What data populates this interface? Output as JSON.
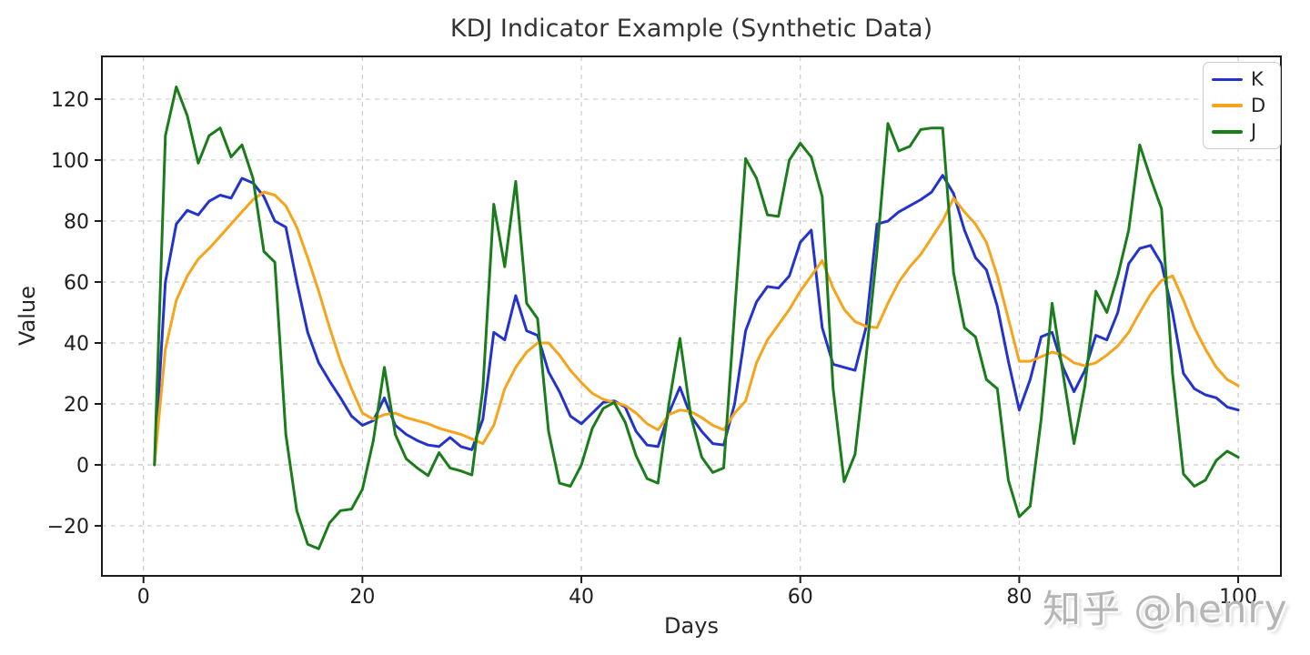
{
  "watermark": {
    "text": "知乎 @henry"
  },
  "chart_data": {
    "type": "line",
    "title": "KDJ Indicator Example (Synthetic Data)",
    "xlabel": "Days",
    "ylabel": "Value",
    "x": {
      "first_day": 1,
      "last_day": 100,
      "step": 1
    },
    "xlim": [
      -3.8,
      103.9
    ],
    "ylim": [
      -36.4,
      134.0
    ],
    "x_ticks": [
      0,
      20,
      40,
      60,
      80,
      100
    ],
    "y_ticks": [
      -20,
      0,
      20,
      40,
      60,
      80,
      100,
      120
    ],
    "grid": true,
    "grid_style": "dashed",
    "legend_position": "upper right",
    "series": [
      {
        "name": "K",
        "color": "#2433cc",
        "values": [
          0,
          60,
          79,
          83.5,
          82,
          86.5,
          88.5,
          87.5,
          94,
          92.5,
          88,
          80,
          78,
          60,
          43.5,
          33.5,
          27.5,
          22,
          16,
          13,
          14.5,
          22,
          13,
          10,
          8,
          6.5,
          6,
          9,
          6,
          5,
          15,
          43.5,
          41,
          55.5,
          44,
          42.5,
          30.5,
          24,
          16,
          13.5,
          17,
          20.5,
          21,
          19,
          11,
          6.5,
          6,
          17,
          25.5,
          16,
          11,
          7,
          6.5,
          20,
          44,
          53.5,
          58.5,
          58,
          62,
          73,
          77,
          45,
          33,
          32,
          31,
          45,
          79,
          80,
          83,
          85,
          87,
          89.5,
          95,
          89,
          77,
          68,
          64,
          52,
          34,
          18,
          28,
          42,
          43.5,
          32,
          24,
          31,
          42.5,
          41,
          50,
          66,
          71,
          72,
          66,
          50,
          30,
          25,
          23,
          22,
          19,
          18
        ]
      },
      {
        "name": "D",
        "color": "#f5a41c",
        "values": [
          0,
          38,
          54,
          62,
          67.5,
          71,
          75,
          79,
          83,
          87,
          89.5,
          88.5,
          85,
          78,
          68,
          57,
          45,
          34,
          25,
          17,
          15,
          16.5,
          17,
          15.5,
          14.5,
          13.5,
          12,
          11,
          10,
          8.5,
          7,
          13,
          25,
          32,
          37,
          40,
          40,
          36,
          31,
          27,
          23.5,
          21.5,
          20.5,
          19.5,
          17,
          13.5,
          11.5,
          16.5,
          18,
          17.5,
          15.5,
          13,
          11.5,
          17,
          21,
          33.5,
          41,
          46,
          51,
          57,
          62,
          67,
          58,
          51,
          47,
          45.5,
          45,
          53,
          60,
          65,
          69,
          74.5,
          80,
          87.5,
          83,
          79,
          73,
          62,
          48,
          34,
          34,
          35.5,
          37,
          36,
          33.5,
          32.5,
          33.5,
          36,
          39,
          43.5,
          50,
          56,
          60.5,
          62,
          54,
          45,
          38,
          32,
          28,
          26
        ]
      },
      {
        "name": "J",
        "color": "#1a7c1a",
        "values": [
          0,
          108,
          124,
          114.5,
          99,
          108,
          110.5,
          101,
          105,
          94,
          70,
          66.5,
          10,
          -15,
          -26,
          -27.5,
          -19,
          -15,
          -14.5,
          -8,
          8,
          32,
          10,
          2,
          -1,
          -3.5,
          4,
          -1,
          -2,
          -3.3,
          25,
          85.5,
          65,
          93,
          53,
          48,
          11,
          -6,
          -7,
          0,
          12,
          18.5,
          20.5,
          14,
          3,
          -4.5,
          -6,
          20,
          41.5,
          16,
          2.5,
          -2.5,
          -1,
          50,
          100.5,
          94,
          82,
          81.5,
          100,
          105.5,
          101,
          88,
          25,
          -5.5,
          3.5,
          35,
          70,
          112,
          103,
          104.5,
          110,
          110.5,
          110.5,
          63,
          45,
          42,
          28,
          25,
          -5,
          -17,
          -13.5,
          15,
          53,
          30,
          7,
          26,
          57,
          50,
          62,
          77,
          105,
          94,
          84,
          30,
          -3,
          -7,
          -5,
          1.5,
          4.5,
          2.5
        ]
      }
    ]
  }
}
